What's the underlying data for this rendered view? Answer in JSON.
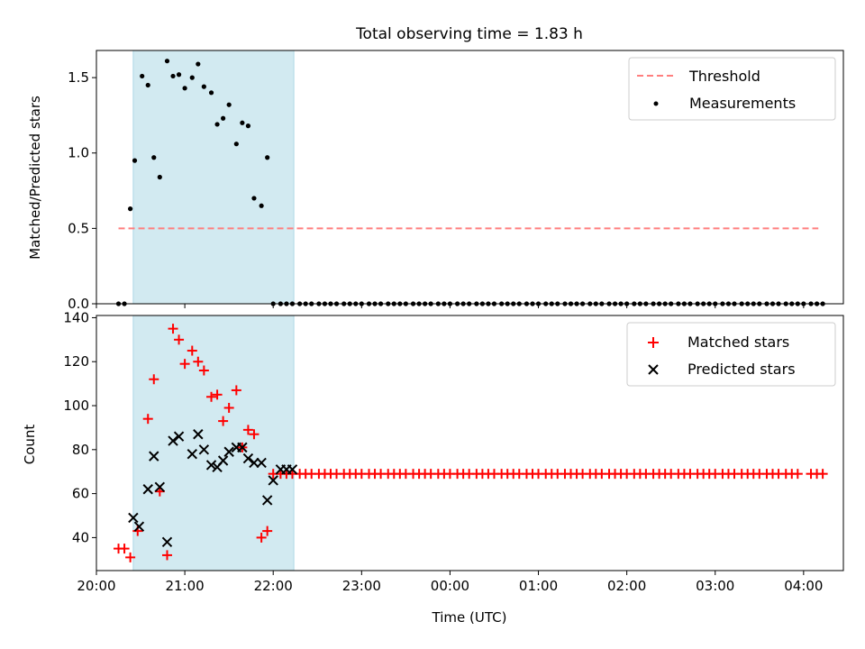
{
  "figure": {
    "suptitle": "Total observing time = 1.83 h",
    "xlabel": "Time (UTC)"
  },
  "chart_data": [
    {
      "type": "scatter",
      "panel": "top",
      "ylabel": "Matched/Predicted stars",
      "xlim": [
        "20:00",
        "04:27"
      ],
      "ylim": [
        0,
        1.68
      ],
      "yticks": [
        "0.0",
        "0.5",
        "1.0",
        "1.5"
      ],
      "legend": "top-right",
      "highlight_span": {
        "from": "20:25",
        "to": "22:14",
        "color": "#add8e6"
      },
      "series": [
        {
          "name": "Threshold",
          "kind": "line",
          "style": "dashed",
          "color": "#ff7f7f",
          "x": [
            "20:15",
            "04:10"
          ],
          "y": [
            0.5,
            0.5
          ]
        },
        {
          "name": "Measurements",
          "kind": "scatter",
          "marker": "dot",
          "color": "#000000",
          "x": [
            "20:15",
            "20:19",
            "20:23",
            "20:26",
            "20:31",
            "20:35",
            "20:39",
            "20:43",
            "20:48",
            "20:52",
            "20:56",
            "21:00",
            "21:05",
            "21:09",
            "21:13",
            "21:18",
            "21:22",
            "21:26",
            "21:30",
            "21:35",
            "21:39",
            "21:43",
            "21:47",
            "21:52",
            "21:56",
            "22:00",
            "22:05",
            "22:09",
            "22:13",
            "22:18",
            "22:22",
            "22:26",
            "22:31",
            "22:35",
            "22:39",
            "22:43",
            "22:48",
            "22:52",
            "22:56",
            "23:00",
            "23:05",
            "23:09",
            "23:13",
            "23:18",
            "23:22",
            "23:26",
            "23:30",
            "23:35",
            "23:39",
            "23:43",
            "23:47",
            "23:52",
            "23:56",
            "00:00",
            "00:05",
            "00:09",
            "00:13",
            "00:18",
            "00:22",
            "00:26",
            "00:30",
            "00:35",
            "00:39",
            "00:43",
            "00:47",
            "00:52",
            "00:56",
            "01:00",
            "01:05",
            "01:09",
            "01:13",
            "01:18",
            "01:22",
            "01:26",
            "01:30",
            "01:35",
            "01:39",
            "01:43",
            "01:48",
            "01:52",
            "01:56",
            "02:00",
            "02:05",
            "02:09",
            "02:13",
            "02:18",
            "02:22",
            "02:26",
            "02:30",
            "02:35",
            "02:39",
            "02:43",
            "02:48",
            "02:52",
            "02:56",
            "03:00",
            "03:05",
            "03:09",
            "03:13",
            "03:18",
            "03:22",
            "03:26",
            "03:30",
            "03:35",
            "03:39",
            "03:43",
            "03:48",
            "03:52",
            "03:56",
            "04:00",
            "04:05",
            "04:09",
            "04:13"
          ],
          "y": [
            0,
            0,
            0.63,
            0.95,
            1.51,
            1.45,
            0.97,
            0.84,
            1.61,
            1.51,
            1.52,
            1.43,
            1.5,
            1.59,
            1.44,
            1.4,
            1.19,
            1.23,
            1.32,
            1.06,
            1.2,
            1.18,
            0.7,
            0.65,
            0.97,
            0,
            0,
            0,
            0,
            0,
            0,
            0,
            0,
            0,
            0,
            0,
            0,
            0,
            0,
            0,
            0,
            0,
            0,
            0,
            0,
            0,
            0,
            0,
            0,
            0,
            0,
            0,
            0,
            0,
            0,
            0,
            0,
            0,
            0,
            0,
            0,
            0,
            0,
            0,
            0,
            0,
            0,
            0,
            0,
            0,
            0,
            0,
            0,
            0,
            0,
            0,
            0,
            0,
            0,
            0,
            0,
            0,
            0,
            0,
            0,
            0,
            0,
            0,
            0,
            0,
            0,
            0,
            0,
            0,
            0,
            0,
            0,
            0,
            0,
            0,
            0,
            0,
            0,
            0,
            0,
            0,
            0,
            0,
            0,
            0,
            0,
            0,
            0
          ]
        }
      ]
    },
    {
      "type": "scatter",
      "panel": "bottom",
      "ylabel": "Count",
      "xlim": [
        "20:00",
        "04:27"
      ],
      "ylim": [
        25,
        141
      ],
      "xticks": [
        "20:00",
        "21:00",
        "22:00",
        "23:00",
        "00:00",
        "01:00",
        "02:00",
        "03:00",
        "04:00"
      ],
      "yticks": [
        "40",
        "60",
        "80",
        "100",
        "120",
        "140"
      ],
      "legend": "top-right",
      "highlight_span": {
        "from": "20:25",
        "to": "22:14",
        "color": "#add8e6"
      },
      "series": [
        {
          "name": "Matched stars",
          "kind": "scatter",
          "marker": "plus",
          "color": "#ff0000",
          "x": [
            "20:15",
            "20:19",
            "20:23",
            "20:28",
            "20:35",
            "20:39",
            "20:43",
            "20:48",
            "20:52",
            "20:56",
            "21:00",
            "21:05",
            "21:09",
            "21:13",
            "21:18",
            "21:22",
            "21:26",
            "21:30",
            "21:35",
            "21:39",
            "21:43",
            "21:47",
            "21:52",
            "21:56",
            "22:00",
            "22:05",
            "22:09",
            "22:13",
            "22:18",
            "22:22",
            "22:26",
            "22:31",
            "22:35",
            "22:39",
            "22:43",
            "22:48",
            "22:52",
            "22:56",
            "23:00",
            "23:05",
            "23:09",
            "23:13",
            "23:18",
            "23:22",
            "23:26",
            "23:30",
            "23:35",
            "23:39",
            "23:43",
            "23:47",
            "23:52",
            "23:56",
            "00:00",
            "00:05",
            "00:09",
            "00:13",
            "00:18",
            "00:22",
            "00:26",
            "00:30",
            "00:35",
            "00:39",
            "00:43",
            "00:47",
            "00:52",
            "00:56",
            "01:00",
            "01:05",
            "01:09",
            "01:13",
            "01:18",
            "01:22",
            "01:26",
            "01:30",
            "01:35",
            "01:39",
            "01:43",
            "01:48",
            "01:52",
            "01:56",
            "02:00",
            "02:05",
            "02:09",
            "02:13",
            "02:18",
            "02:22",
            "02:26",
            "02:30",
            "02:35",
            "02:39",
            "02:43",
            "02:48",
            "02:52",
            "02:56",
            "03:00",
            "03:05",
            "03:09",
            "03:13",
            "03:18",
            "03:22",
            "03:26",
            "03:30",
            "03:35",
            "03:39",
            "03:43",
            "03:48",
            "03:52",
            "03:56",
            "04:05",
            "04:09",
            "04:13"
          ],
          "y": [
            35,
            35,
            31,
            43,
            94,
            112,
            61,
            32,
            135,
            130,
            119,
            125,
            120,
            116,
            104,
            105,
            93,
            99,
            107,
            81,
            89,
            87,
            40,
            43,
            69,
            69,
            69,
            69,
            69,
            69,
            69,
            69,
            69,
            69,
            69,
            69,
            69,
            69,
            69,
            69,
            69,
            69,
            69,
            69,
            69,
            69,
            69,
            69,
            69,
            69,
            69,
            69,
            69,
            69,
            69,
            69,
            69,
            69,
            69,
            69,
            69,
            69,
            69,
            69,
            69,
            69,
            69,
            69,
            69,
            69,
            69,
            69,
            69,
            69,
            69,
            69,
            69,
            69,
            69,
            69,
            69,
            69,
            69,
            69,
            69,
            69,
            69,
            69,
            69,
            69,
            69,
            69,
            69,
            69,
            69,
            69,
            69,
            69,
            69,
            69,
            69,
            69,
            69,
            69,
            69,
            69,
            69,
            69,
            69,
            69,
            69
          ]
        },
        {
          "name": "Predicted stars",
          "kind": "scatter",
          "marker": "x",
          "color": "#000000",
          "x": [
            "20:25",
            "20:29",
            "20:35",
            "20:39",
            "20:43",
            "20:48",
            "20:52",
            "20:56",
            "21:05",
            "21:09",
            "21:13",
            "21:18",
            "21:22",
            "21:26",
            "21:30",
            "21:35",
            "21:39",
            "21:43",
            "21:47",
            "21:52",
            "21:56",
            "22:00",
            "22:05",
            "22:09",
            "22:13"
          ],
          "y": [
            49,
            45,
            62,
            77,
            63,
            38,
            84,
            86,
            78,
            87,
            80,
            73,
            72,
            75,
            79,
            81,
            81,
            76,
            74,
            74,
            57,
            66,
            71,
            71,
            71
          ]
        }
      ]
    }
  ]
}
